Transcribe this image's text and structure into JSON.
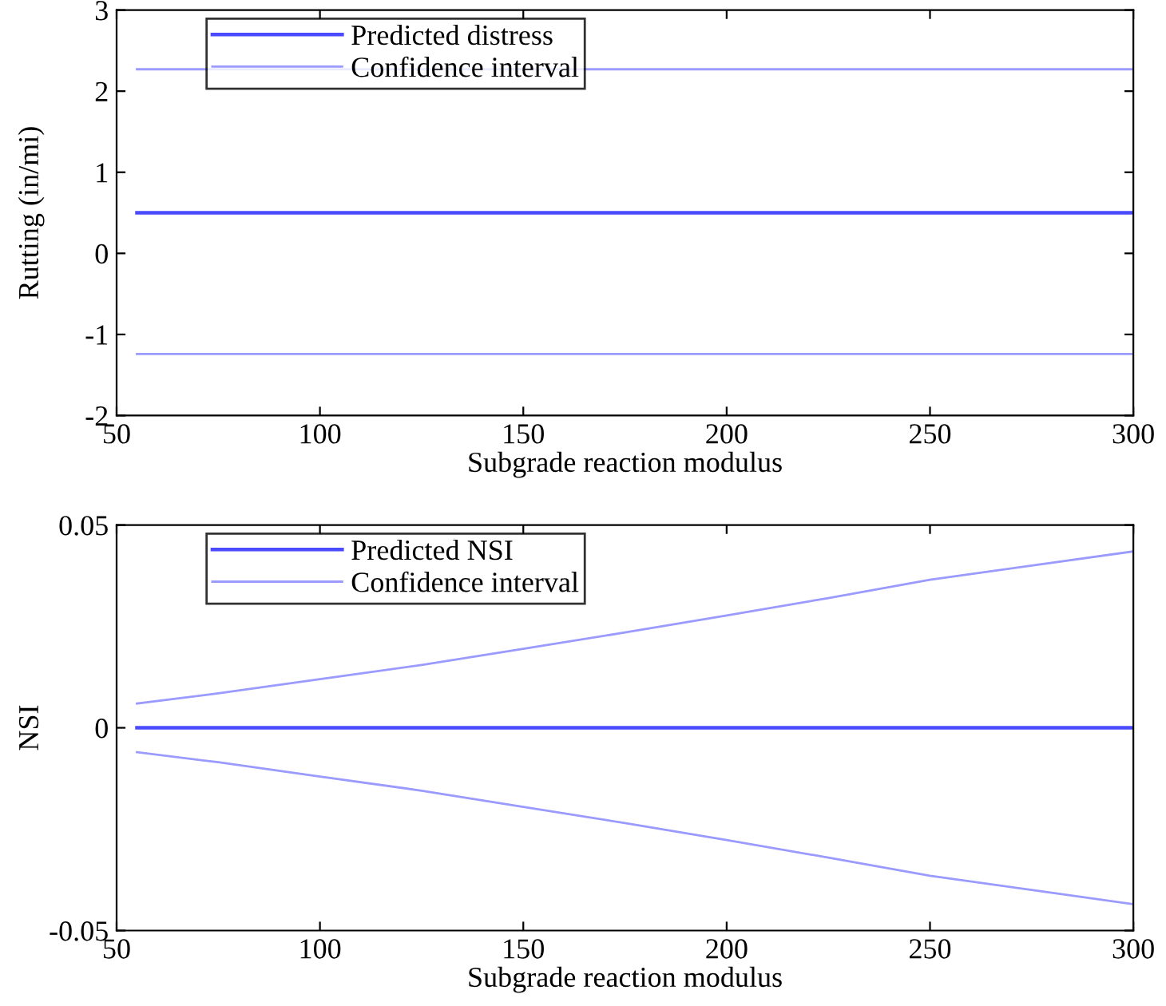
{
  "chart_data": [
    {
      "type": "line",
      "xlabel": "Subgrade reaction modulus",
      "ylabel": "Rutting (in/mi)",
      "xlim": [
        50,
        300
      ],
      "xticks": [
        50,
        100,
        150,
        200,
        250,
        300
      ],
      "ylim": [
        -2,
        3
      ],
      "yticks": [
        -2,
        -1,
        0,
        1,
        2,
        3
      ],
      "grid": false,
      "legend": "top left",
      "series": [
        {
          "name": "Predicted distress",
          "color": "#4a4aff",
          "x": [
            55,
            300
          ],
          "values": [
            0.5,
            0.5
          ]
        },
        {
          "name": "Confidence interval",
          "color": "#9a9aff",
          "x": [
            55,
            300
          ],
          "values": [
            2.27,
            2.27
          ]
        },
        {
          "color": "#9a9aff",
          "x": [
            55,
            300
          ],
          "values": [
            -1.24,
            -1.24
          ]
        }
      ]
    },
    {
      "type": "line",
      "xlabel": "Subgrade reaction modulus",
      "ylabel": "NSI",
      "xlim": [
        50,
        300
      ],
      "xticks": [
        50,
        100,
        150,
        200,
        250,
        300
      ],
      "ylim": [
        -0.05,
        0.05
      ],
      "yticks": [
        -0.05,
        0,
        0.05
      ],
      "grid": false,
      "legend": "top left",
      "series": [
        {
          "name": "Predicted NSI",
          "color": "#4a4aff",
          "x": [
            55,
            300
          ],
          "values": [
            0,
            0
          ]
        },
        {
          "name": "Confidence interval",
          "color": "#9a9aff",
          "x": [
            55,
            75,
            100,
            125,
            150,
            175,
            200,
            225,
            250,
            275,
            300
          ],
          "values": [
            0.006,
            0.0085,
            0.012,
            0.0155,
            0.0195,
            0.0235,
            0.0277,
            0.032,
            0.0365,
            0.04,
            0.0435
          ]
        },
        {
          "color": "#9a9aff",
          "x": [
            55,
            75,
            100,
            125,
            150,
            175,
            200,
            225,
            250,
            275,
            300
          ],
          "values": [
            -0.006,
            -0.0085,
            -0.012,
            -0.0155,
            -0.0195,
            -0.0235,
            -0.0277,
            -0.032,
            -0.0365,
            -0.04,
            -0.0435
          ]
        }
      ]
    }
  ]
}
